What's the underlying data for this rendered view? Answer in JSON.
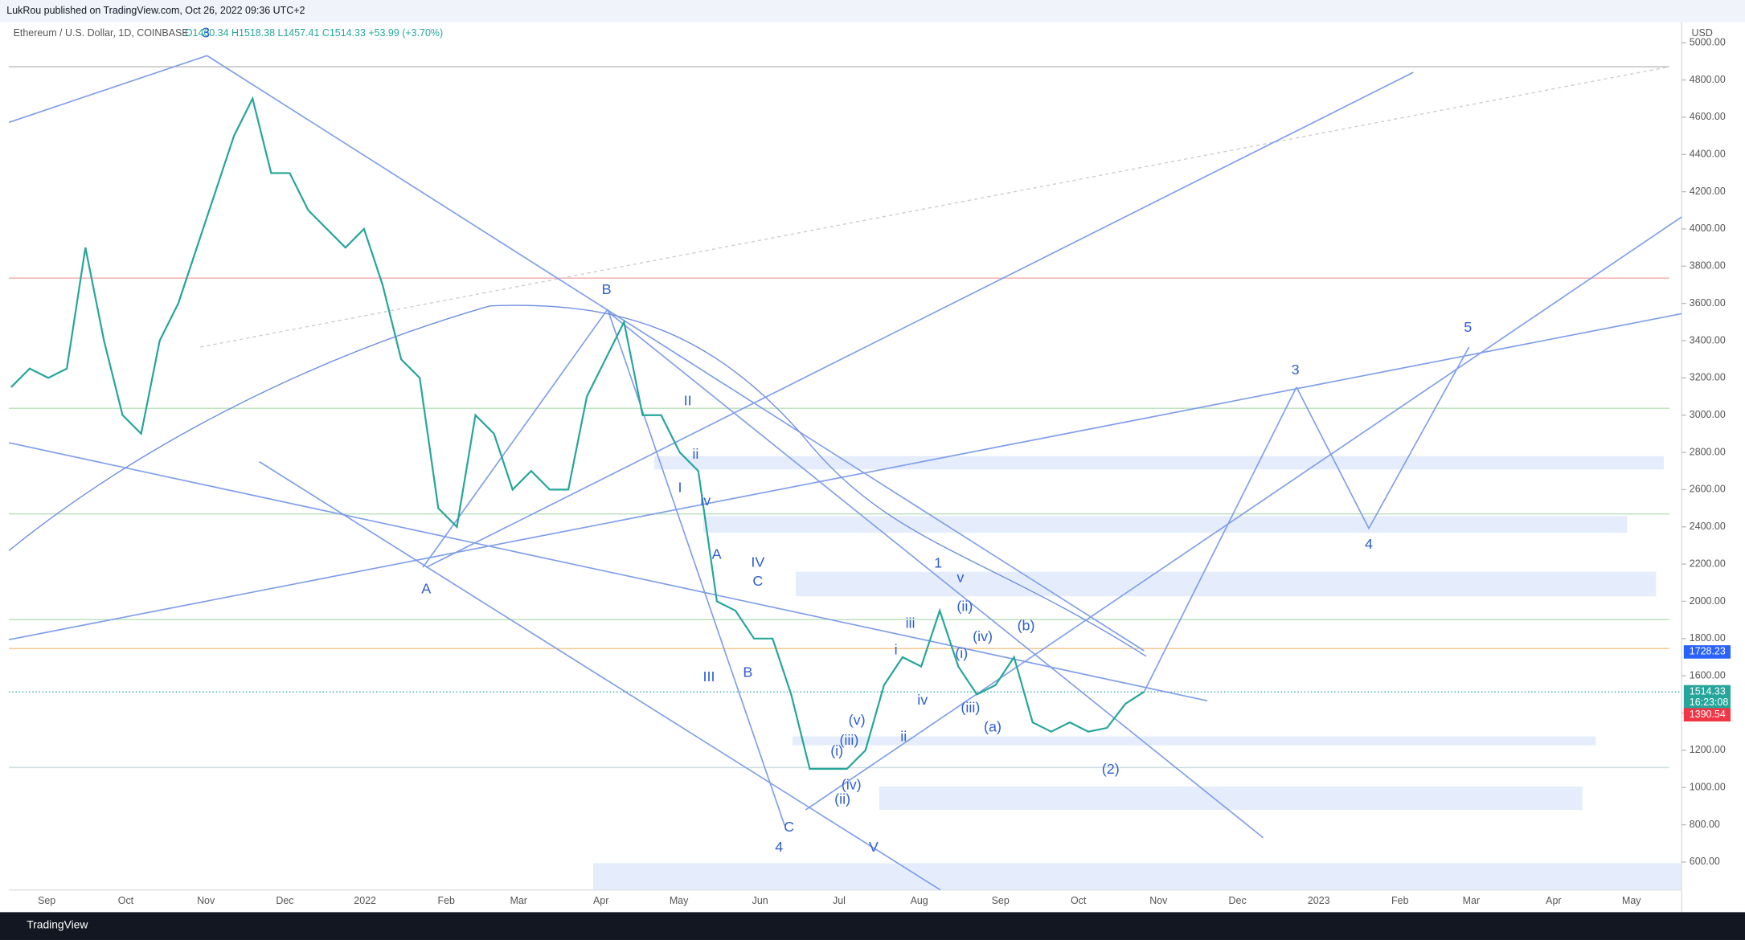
{
  "header": {
    "publisher": "LukRou published on TradingView.com, Oct 26, 2022 09:36 UTC+2",
    "symbol": "Ethereum / U.S. Dollar, 1D, COINBASE",
    "ohlc": "O1460.34 H1518.38 L1457.41 C1514.33 +53.99 (+3.70%)"
  },
  "footer": {
    "brand": "TradingView"
  },
  "chart_data": {
    "type": "line",
    "color": "#26a69a",
    "axis_unit": "USD",
    "values": [
      3150,
      3250,
      3200,
      3250,
      3900,
      3400,
      3000,
      2900,
      3400,
      3600,
      3900,
      4200,
      4500,
      4700,
      4300,
      4300,
      4100,
      4000,
      3900,
      4000,
      3700,
      3300,
      3200,
      2500,
      2400,
      3000,
      2900,
      2600,
      2700,
      2600,
      2600,
      3100,
      3300,
      3500,
      3000,
      3000,
      2800,
      2700,
      2000,
      1950,
      1800,
      1800,
      1500,
      1100,
      1100,
      1100,
      1200,
      1550,
      1700,
      1650,
      1950,
      1650,
      1500,
      1550,
      1700,
      1350,
      1300,
      1350,
      1300,
      1320,
      1450,
      1514.33
    ],
    "ylim": [
      450,
      5110
    ],
    "yticks": [
      {
        "value": 600,
        "label": "600.00"
      },
      {
        "value": 800,
        "label": "800.00"
      },
      {
        "value": 1000,
        "label": "1000.00"
      },
      {
        "value": 1200,
        "label": "1200.00"
      },
      {
        "value": 1400,
        "label": "1400.00"
      },
      {
        "value": 1600,
        "label": "1600.00"
      },
      {
        "value": 1800,
        "label": "1800.00"
      },
      {
        "value": 2000,
        "label": "2000.00"
      },
      {
        "value": 2200,
        "label": "2200.00"
      },
      {
        "value": 2400,
        "label": "2400.00"
      },
      {
        "value": 2600,
        "label": "2600.00"
      },
      {
        "value": 2800,
        "label": "2800.00"
      },
      {
        "value": 3000,
        "label": "3000.00"
      },
      {
        "value": 3200,
        "label": "3200.00"
      },
      {
        "value": 3400,
        "label": "3400.00"
      },
      {
        "value": 3600,
        "label": "3600.00"
      },
      {
        "value": 3800,
        "label": "3800.00"
      },
      {
        "value": 4000,
        "label": "4000.00"
      },
      {
        "value": 4200,
        "label": "4200.00"
      },
      {
        "value": 4400,
        "label": "4400.00"
      },
      {
        "value": 4600,
        "label": "4600.00"
      },
      {
        "value": 4800,
        "label": "4800.00"
      },
      {
        "value": 5000,
        "label": "5000.00"
      }
    ],
    "xticks": [
      "Sep",
      "Oct",
      "Nov",
      "Dec",
      "2022",
      "Feb",
      "Mar",
      "Apr",
      "May",
      "Jun",
      "Jul",
      "Aug",
      "Sep",
      "Oct",
      "Nov",
      "Dec",
      "2023",
      "Feb",
      "Mar",
      "Apr",
      "May"
    ],
    "price_tags": [
      {
        "value": 1728.23,
        "color": "#2962ff"
      },
      {
        "value": 1514.33,
        "color": "#26a69a",
        "countdown": "16:23:08"
      },
      {
        "value": 1390.54,
        "color": "#f23645"
      }
    ],
    "annotations": [
      "3",
      "B",
      "A",
      "II",
      "I",
      "ii",
      "iv",
      "A",
      "IV",
      "C",
      "B",
      "III",
      "C",
      "4",
      "V",
      "(v)",
      "(iii)",
      "(i)",
      "(iv)",
      "(ii)",
      "iii",
      "i",
      "iv",
      "ii",
      "1",
      "v",
      "(ii)",
      "(iv)",
      "(i)",
      "(iii)",
      "(b)",
      "(a)",
      "(2)",
      "3",
      "4",
      "5"
    ]
  }
}
